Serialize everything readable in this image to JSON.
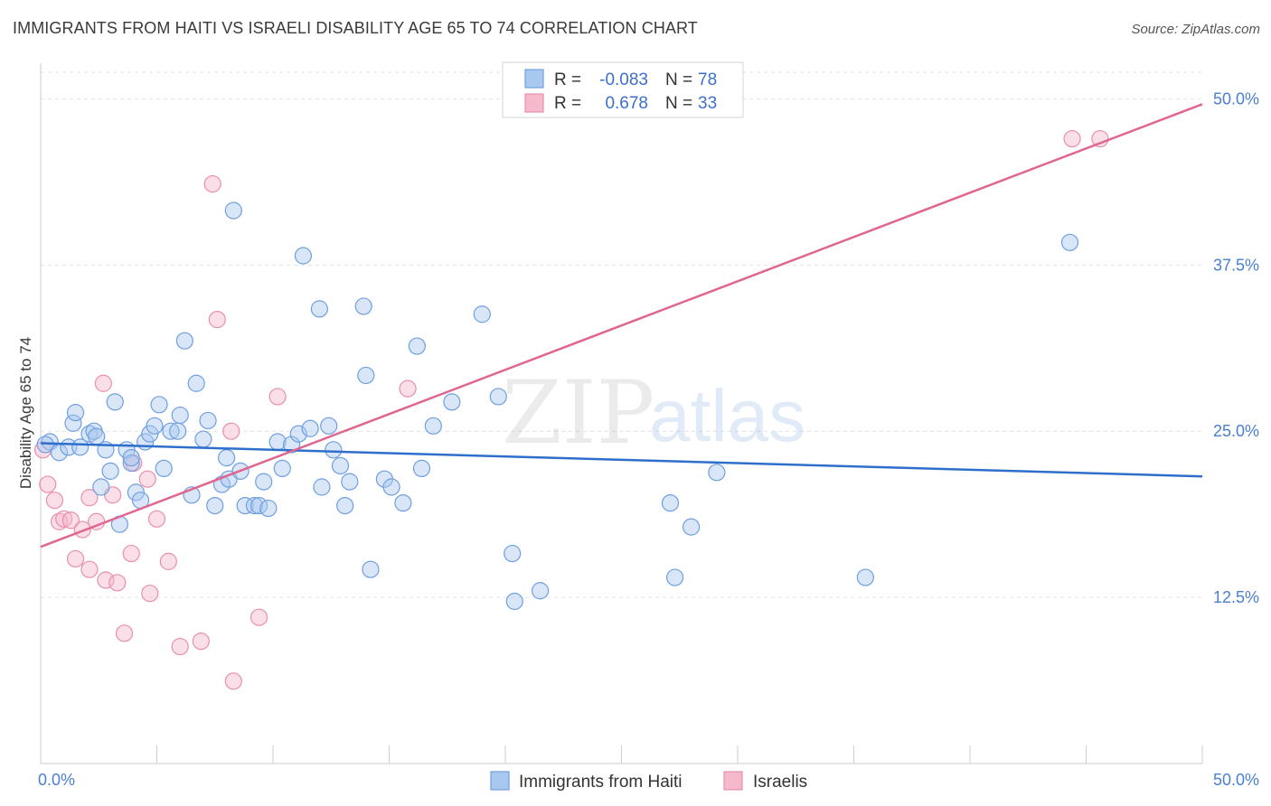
{
  "title": "IMMIGRANTS FROM HAITI VS ISRAELI DISABILITY AGE 65 TO 74 CORRELATION CHART",
  "source": "Source: ZipAtlas.com",
  "watermark": {
    "zip": "ZIP",
    "atlas": "atlas"
  },
  "colors": {
    "blue_fill": "#a9c8f0",
    "blue_stroke": "#6f9fe0",
    "blue_line": "#2f6fcc",
    "pink_fill": "#f6b9cc",
    "pink_stroke": "#ea8fab",
    "pink_line": "#e06690",
    "tick_text": "#4a7fd0",
    "grid": "#dde3ea"
  },
  "legend": {
    "rows": [
      {
        "r_label": "R =",
        "r_value": "-0.083",
        "n_label": "N =",
        "n_value": "78"
      },
      {
        "r_label": "R =",
        "r_value": "0.678",
        "n_label": "N =",
        "n_value": "33"
      }
    ]
  },
  "chart_data": {
    "type": "scatter",
    "title": "IMMIGRANTS FROM HAITI VS ISRAELI DISABILITY AGE 65 TO 74 CORRELATION CHART",
    "xlabel": "",
    "ylabel": "Disability Age 65 to 74",
    "xlim": [
      0,
      50
    ],
    "ylim": [
      0,
      52
    ],
    "x_tick_labels": [
      "0.0%",
      "50.0%"
    ],
    "y_ticks": [
      12.5,
      25.0,
      37.5,
      50.0
    ],
    "y_tick_labels": [
      "12.5%",
      "25.0%",
      "37.5%",
      "50.0%"
    ],
    "grid": true,
    "legend_placement": "top-center",
    "series": [
      {
        "name": "Immigrants from Haiti",
        "color": "#a9c8f0",
        "trend": {
          "x": [
            0,
            50
          ],
          "y": [
            24.1,
            21.6
          ]
        },
        "points": [
          [
            0.4,
            24.2
          ],
          [
            0.8,
            23.4
          ],
          [
            1.2,
            23.8
          ],
          [
            1.4,
            25.6
          ],
          [
            1.5,
            26.4
          ],
          [
            1.7,
            23.8
          ],
          [
            2.1,
            24.8
          ],
          [
            2.3,
            25.0
          ],
          [
            2.4,
            24.6
          ],
          [
            2.6,
            20.8
          ],
          [
            2.8,
            23.6
          ],
          [
            3.0,
            22.0
          ],
          [
            3.2,
            27.2
          ],
          [
            3.4,
            18.0
          ],
          [
            3.7,
            23.6
          ],
          [
            3.9,
            22.6
          ],
          [
            4.1,
            20.4
          ],
          [
            4.3,
            19.8
          ],
          [
            4.5,
            24.2
          ],
          [
            4.7,
            24.8
          ],
          [
            4.9,
            25.4
          ],
          [
            5.1,
            27.0
          ],
          [
            5.3,
            22.2
          ],
          [
            5.6,
            25.0
          ],
          [
            5.9,
            25.0
          ],
          [
            6.0,
            26.2
          ],
          [
            6.2,
            31.8
          ],
          [
            6.5,
            20.2
          ],
          [
            6.7,
            28.6
          ],
          [
            7.0,
            24.4
          ],
          [
            7.2,
            25.8
          ],
          [
            7.5,
            19.4
          ],
          [
            7.8,
            21.0
          ],
          [
            8.0,
            23.0
          ],
          [
            8.3,
            41.6
          ],
          [
            8.1,
            21.4
          ],
          [
            8.6,
            22.0
          ],
          [
            8.8,
            19.4
          ],
          [
            9.2,
            19.4
          ],
          [
            9.4,
            19.4
          ],
          [
            9.6,
            21.2
          ],
          [
            9.8,
            19.2
          ],
          [
            10.2,
            24.2
          ],
          [
            10.4,
            22.2
          ],
          [
            10.8,
            24.0
          ],
          [
            11.1,
            24.8
          ],
          [
            11.3,
            38.2
          ],
          [
            11.6,
            25.2
          ],
          [
            12.0,
            34.2
          ],
          [
            12.1,
            20.8
          ],
          [
            12.4,
            25.4
          ],
          [
            12.6,
            23.6
          ],
          [
            12.9,
            22.4
          ],
          [
            13.1,
            19.4
          ],
          [
            13.3,
            21.2
          ],
          [
            13.9,
            34.4
          ],
          [
            14.0,
            29.2
          ],
          [
            14.2,
            14.6
          ],
          [
            14.8,
            21.4
          ],
          [
            15.1,
            20.8
          ],
          [
            15.6,
            19.6
          ],
          [
            16.2,
            31.4
          ],
          [
            16.4,
            22.2
          ],
          [
            16.9,
            25.4
          ],
          [
            17.7,
            27.2
          ],
          [
            19.0,
            33.8
          ],
          [
            19.7,
            27.6
          ],
          [
            20.3,
            15.8
          ],
          [
            20.4,
            12.2
          ],
          [
            21.5,
            13.0
          ],
          [
            27.1,
            19.6
          ],
          [
            27.3,
            14.0
          ],
          [
            28.0,
            17.8
          ],
          [
            29.1,
            21.9
          ],
          [
            35.5,
            14.0
          ],
          [
            44.3,
            39.2
          ],
          [
            0.2,
            24.0
          ],
          [
            3.9,
            23.0
          ]
        ]
      },
      {
        "name": "Israelis",
        "color": "#f6b9cc",
        "trend": {
          "x": [
            0,
            50
          ],
          "y": [
            16.3,
            49.6
          ]
        },
        "points": [
          [
            0.3,
            21.0
          ],
          [
            0.6,
            19.8
          ],
          [
            0.8,
            18.2
          ],
          [
            1.0,
            18.4
          ],
          [
            1.3,
            18.3
          ],
          [
            1.5,
            15.4
          ],
          [
            1.8,
            17.6
          ],
          [
            2.1,
            14.6
          ],
          [
            2.1,
            20.0
          ],
          [
            2.4,
            18.2
          ],
          [
            2.7,
            28.6
          ],
          [
            2.8,
            13.8
          ],
          [
            3.1,
            20.2
          ],
          [
            3.3,
            13.6
          ],
          [
            3.6,
            9.8
          ],
          [
            3.9,
            15.8
          ],
          [
            4.0,
            22.6
          ],
          [
            4.6,
            21.4
          ],
          [
            4.7,
            12.8
          ],
          [
            5.0,
            18.4
          ],
          [
            5.5,
            15.2
          ],
          [
            6.0,
            8.8
          ],
          [
            6.9,
            9.2
          ],
          [
            7.4,
            43.6
          ],
          [
            7.6,
            33.4
          ],
          [
            8.2,
            25.0
          ],
          [
            8.3,
            6.2
          ],
          [
            9.4,
            11.0
          ],
          [
            10.2,
            27.6
          ],
          [
            15.8,
            28.2
          ],
          [
            44.4,
            47.0
          ],
          [
            45.6,
            47.0
          ],
          [
            0.1,
            23.6
          ]
        ]
      }
    ]
  }
}
